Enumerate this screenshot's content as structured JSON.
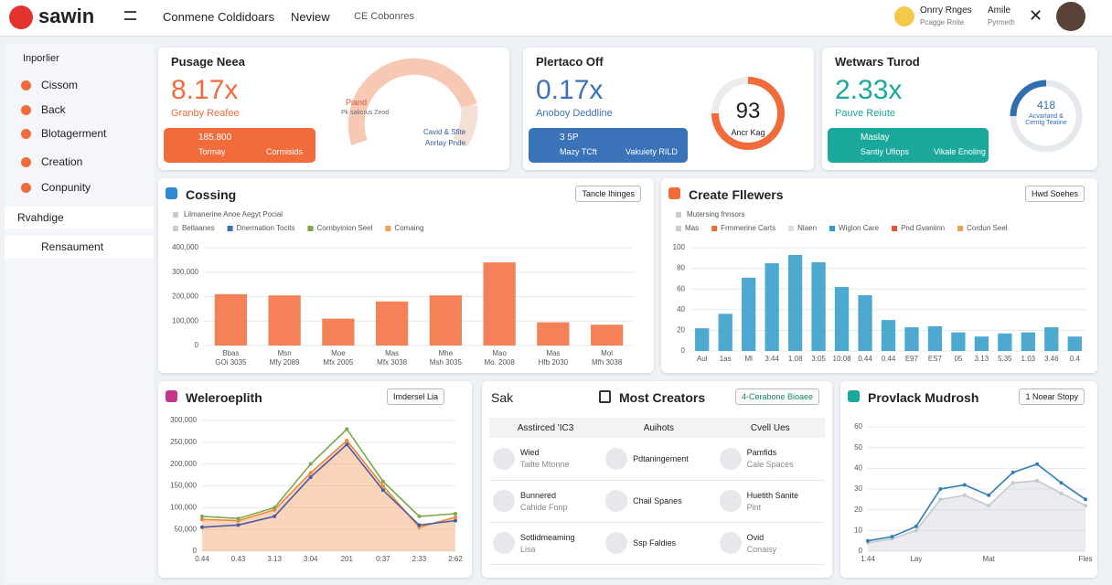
{
  "topbar": {
    "brand": "sawin",
    "nav": [
      "Conmene Coldidoars",
      "Neview",
      "CE Cobonres"
    ],
    "user1": {
      "name": "Onrry Rnges",
      "sub": "Pcagge Rnite"
    },
    "user2": {
      "name": "Amile",
      "sub": "Pyrmeth"
    }
  },
  "sidebar": {
    "heading": "Inporlier",
    "items": [
      "Cissom",
      "Back",
      "Blotagerment",
      "Creation",
      "Conpunity"
    ],
    "groups": [
      "Rvahdige",
      "Rensaument"
    ]
  },
  "stats": [
    {
      "title": "Pusage Neea",
      "value": "8.17x",
      "caption": "Granby Reafee",
      "color": "#f26b3a",
      "button": {
        "value": "185.800",
        "label": "Tormay",
        "extra": "Cormisids"
      },
      "gauge": [
        "Piand",
        "Pk sakcrus Zeod",
        "Cavid & Sfite",
        "Anrtay Pnde"
      ]
    },
    {
      "title": "Plertaco Off",
      "value": "0.17x",
      "caption": "Anoboy Deddline",
      "color": "#3b73b9",
      "button": {
        "value": "3 5P",
        "label": "Mazy TCft",
        "extra": "Vakuiety RILD"
      },
      "gauge": [
        "93",
        "Ancr Kag"
      ]
    },
    {
      "title": "Wetwars Turod",
      "value": "2.33x",
      "caption": "Pauve Reiute",
      "color": "#1aa89a",
      "button": {
        "value": "Maslay",
        "label": "Santiy Ufiops",
        "extra": "Vikale Enoling"
      },
      "gauge": [
        "418",
        "Acvarland & Cerntg Teatine"
      ]
    }
  ],
  "cossing": {
    "type": "bar",
    "title": "Cossing",
    "button": "Tancle Ihinges",
    "subtitle": "Lilmanerine Anoe Aegyt Pocial",
    "legend": [
      {
        "name": "Betlaanes",
        "color": "#c9ccd1"
      },
      {
        "name": "Dnermation Tocits",
        "color": "#3b73b9"
      },
      {
        "name": "Cornbyinion Seel",
        "color": "#7aa84a"
      },
      {
        "name": "Comaing",
        "color": "#f0a050"
      }
    ],
    "categories": [
      "Bbas",
      "Msn",
      "Moe",
      "Mas",
      "Mhe",
      "Mao",
      "Mas",
      "Mol"
    ],
    "dates": [
      "GOi 3035",
      "Mfy 2089",
      "Mfx 2005",
      "Mfx 3038",
      "Msh 3035",
      "Mo. 2008",
      "Hfb 2030",
      "Mfh 3038"
    ],
    "values": [
      210000,
      205000,
      110000,
      180000,
      205000,
      340000,
      95000,
      85000
    ],
    "color": "#f26b3a",
    "ylim": [
      0,
      400000
    ],
    "yticks": [
      0,
      {
        "value": 100000,
        "label": "100,000"
      },
      {
        "value": 200000,
        "label": "200,000"
      },
      {
        "value": 300000,
        "label": "300,000"
      },
      {
        "value": 400000,
        "label": "400,000"
      }
    ],
    "grid": true
  },
  "create_followers": {
    "type": "bar",
    "title": "Create Fllewers",
    "button": "Hwd Soehes",
    "subtitle": "Mutersing fnnsors",
    "legend": [
      {
        "name": "Mas",
        "color": "#c9ccd1"
      },
      {
        "name": "Frmmerine Carts",
        "color": "#f26b3a"
      },
      {
        "name": "Nlaen",
        "color": "#dddddd"
      },
      {
        "name": "Wiglon Care",
        "color": "#2f9ac9"
      },
      {
        "name": "Pnd Gvaniinn",
        "color": "#e0533a"
      },
      {
        "name": "Cordun Seel",
        "color": "#f0a050"
      }
    ],
    "categories": [
      "Aul",
      "1as",
      "Ml",
      "3:44",
      "1.08",
      "3:05",
      "10:08",
      "0.44",
      "0.44",
      "E97",
      "ES7",
      "05",
      "3.13",
      "5.35",
      "1.03",
      "3.46",
      "0.4"
    ],
    "values": [
      22,
      36,
      71,
      85,
      93,
      86,
      62,
      54,
      30,
      23,
      24,
      18,
      14,
      17,
      18,
      23,
      14
    ],
    "color": "#2f9ac9",
    "ylim": [
      0,
      100
    ],
    "yticks": [
      0,
      20,
      40,
      60,
      80,
      100
    ],
    "grid": true
  },
  "weleroeplith": {
    "type": "line",
    "title": "Weleroeplith",
    "button": "Imdersel Lia",
    "categories": [
      "0.44",
      "0.43",
      "3.13",
      "3:04",
      "201",
      "0:37",
      "2:33",
      "2:62"
    ],
    "series": [
      {
        "color": "#f0883a",
        "area": true,
        "values": [
          73000,
          70000,
          95000,
          180000,
          254000,
          150000,
          55000,
          78000
        ]
      },
      {
        "color": "#7aa84a",
        "values": [
          80000,
          75000,
          100000,
          200000,
          280000,
          160000,
          80000,
          86000
        ]
      },
      {
        "color": "#4a5aa8",
        "values": [
          55000,
          60000,
          80000,
          170000,
          245000,
          140000,
          60000,
          70000
        ]
      }
    ],
    "ylim": [
      0,
      300000
    ],
    "yticks": [
      0,
      {
        "value": 50000,
        "label": "50,000"
      },
      {
        "value": 100000,
        "label": "100,000"
      },
      {
        "value": 150000,
        "label": "150,000"
      },
      {
        "value": 200000,
        "label": "200,000"
      },
      {
        "value": 250000,
        "label": "250,000"
      },
      {
        "value": 300000,
        "label": "300,000"
      }
    ],
    "grid": true
  },
  "creators": {
    "tab": "Sak",
    "title": "Most Creators",
    "button": "4-Cerabone Bioaee",
    "columns": [
      "Asstirced 'IC3",
      "Auihots",
      "Cvell Ues"
    ],
    "rows": [
      [
        [
          "Wied",
          "Tailte Mtonne"
        ],
        [
          "Pdtaningement"
        ],
        [
          "Pamfids",
          "Cale Spaces"
        ]
      ],
      [
        [
          "Bunnered",
          "Cahide Fonp"
        ],
        [
          "Chail Spanes"
        ],
        [
          "Huetith Sanite",
          "Pint"
        ]
      ],
      [
        [
          "Sotlidmeaming",
          "Lisa"
        ],
        [
          "Ssp Faldies"
        ],
        [
          "Ovid",
          "Conaisy"
        ]
      ]
    ]
  },
  "provlack": {
    "type": "line",
    "title": "Provlack Mudrosh",
    "button": "1 Noear Stopy",
    "categories": [
      "1.44",
      null,
      "Lay",
      null,
      null,
      "Mat",
      null,
      null,
      null,
      "Fles"
    ],
    "series": [
      {
        "color": "#c4c9d0",
        "area": true,
        "values": [
          4,
          6,
          10,
          25,
          27,
          22,
          33,
          34,
          28,
          22
        ]
      },
      {
        "color": "#2f7fb0",
        "values": [
          5,
          7,
          12,
          30,
          32,
          27,
          38,
          42,
          33,
          25
        ]
      }
    ],
    "ylim": [
      0,
      60
    ],
    "yticks": [
      0,
      10,
      20,
      30,
      40,
      50,
      60
    ],
    "grid": true
  }
}
